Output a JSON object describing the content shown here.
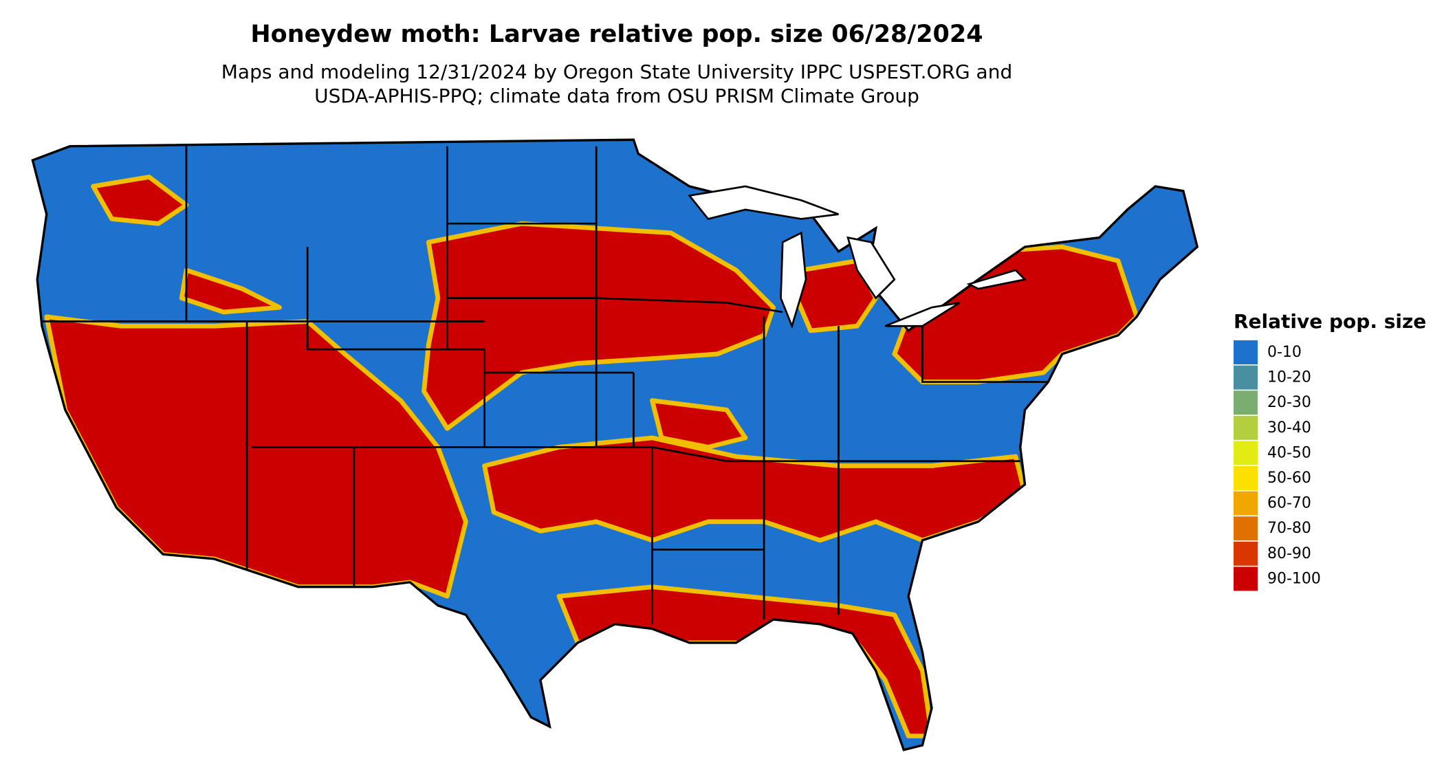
{
  "title": "Honeydew moth: Larvae relative pop. size 06/28/2024",
  "subtitle": [
    "Maps and modeling 12/31/2024 by Oregon State University IPPC USPEST.ORG and",
    "USDA-APHIS-PPQ; climate data from OSU PRISM Climate Group"
  ],
  "legend": {
    "title": "Relative pop. size",
    "items": [
      {
        "label": "0-10",
        "color": "#1c72cc"
      },
      {
        "label": "10-20",
        "color": "#4a8fa0"
      },
      {
        "label": "20-30",
        "color": "#7aad70"
      },
      {
        "label": "30-40",
        "color": "#b3cf3e"
      },
      {
        "label": "40-50",
        "color": "#e3ec12"
      },
      {
        "label": "50-60",
        "color": "#fce000"
      },
      {
        "label": "60-70",
        "color": "#f0a800"
      },
      {
        "label": "70-80",
        "color": "#e07000"
      },
      {
        "label": "80-90",
        "color": "#d83800"
      },
      {
        "label": "90-100",
        "color": "#cc0000"
      }
    ]
  }
}
